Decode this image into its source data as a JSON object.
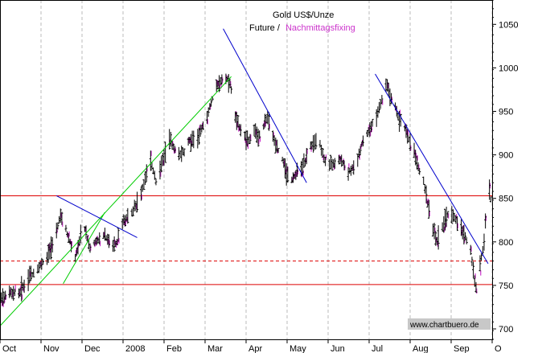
{
  "chart_data": {
    "type": "ohlc",
    "title_line1": "Gold US$/Unze",
    "title_line2_prefix": "Future /",
    "title_line2_highlight": "Nachmittagsfixing",
    "watermark": "www.chartbuero.de",
    "y_axis": {
      "ticks": [
        700,
        750,
        800,
        850,
        900,
        950,
        1000,
        1050
      ],
      "ylim": [
        688,
        1078
      ],
      "position": "right"
    },
    "x_axis": {
      "labels": [
        "Oct",
        "Nov",
        "Dec",
        "2008",
        "Feb",
        "Mar",
        "Apr",
        "May",
        "Jun",
        "Jul",
        "Aug",
        "Sep",
        "O"
      ],
      "range_days": [
        0,
        366
      ]
    },
    "horizontal_levels": [
      {
        "value": 853,
        "style": "solid",
        "color": "#dd0000"
      },
      {
        "value": 778,
        "style": "dashed",
        "color": "#dd0000"
      },
      {
        "value": 751,
        "style": "solid",
        "color": "#dd0000"
      }
    ],
    "trendlines": [
      {
        "color": "#00cc00",
        "from": [
          -2,
          700
        ],
        "to": [
          172,
          990
        ]
      },
      {
        "color": "#00cc00",
        "from": [
          47,
          752
        ],
        "to": [
          78,
          834
        ]
      },
      {
        "color": "#0000cc",
        "from": [
          42,
          853
        ],
        "to": [
          102,
          805
        ]
      },
      {
        "color": "#0000cc",
        "from": [
          166,
          1045
        ],
        "to": [
          228,
          868
        ]
      },
      {
        "color": "#0000cc",
        "from": [
          279,
          993
        ],
        "to": [
          363,
          775
        ]
      }
    ],
    "series_colors": {
      "future": "#000000",
      "fixing": "#cc33cc"
    },
    "grid": {
      "vertical": true,
      "style": "dashed",
      "color": "#bbbbbb"
    },
    "series": [
      {
        "name": "Future",
        "points": [
          [
            0,
            733
          ],
          [
            7,
            743
          ],
          [
            14,
            741
          ],
          [
            21,
            758
          ],
          [
            28,
            770
          ],
          [
            35,
            782
          ],
          [
            42,
            810
          ],
          [
            45,
            832
          ],
          [
            49,
            815
          ],
          [
            53,
            795
          ],
          [
            56,
            782
          ],
          [
            60,
            808
          ],
          [
            63,
            815
          ],
          [
            67,
            793
          ],
          [
            70,
            800
          ],
          [
            74,
            803
          ],
          [
            77,
            808
          ],
          [
            81,
            800
          ],
          [
            84,
            793
          ],
          [
            87,
            800
          ],
          [
            91,
            822
          ],
          [
            98,
            834
          ],
          [
            105,
            855
          ],
          [
            109,
            880
          ],
          [
            112,
            893
          ],
          [
            116,
            870
          ],
          [
            119,
            883
          ],
          [
            123,
            903
          ],
          [
            126,
            918
          ],
          [
            130,
            905
          ],
          [
            133,
            900
          ],
          [
            137,
            903
          ],
          [
            140,
            915
          ],
          [
            144,
            918
          ],
          [
            147,
            920
          ],
          [
            150,
            930
          ],
          [
            154,
            945
          ],
          [
            157,
            960
          ],
          [
            161,
            978
          ],
          [
            164,
            985
          ],
          [
            168,
            988
          ],
          [
            171,
            982
          ],
          [
            173,
            968
          ],
          [
            175,
            942
          ],
          [
            178,
            932
          ],
          [
            182,
            920
          ],
          [
            185,
            915
          ],
          [
            189,
            928
          ],
          [
            192,
            920
          ],
          [
            196,
            932
          ],
          [
            199,
            945
          ],
          [
            203,
            920
          ],
          [
            206,
            908
          ],
          [
            210,
            895
          ],
          [
            213,
            880
          ],
          [
            217,
            870
          ],
          [
            220,
            878
          ],
          [
            224,
            885
          ],
          [
            227,
            893
          ],
          [
            231,
            910
          ],
          [
            234,
            917
          ],
          [
            238,
            912
          ],
          [
            241,
            895
          ],
          [
            245,
            890
          ],
          [
            248,
            888
          ],
          [
            252,
            895
          ],
          [
            255,
            890
          ],
          [
            259,
            880
          ],
          [
            262,
            885
          ],
          [
            266,
            895
          ],
          [
            269,
            912
          ],
          [
            273,
            925
          ],
          [
            276,
            932
          ],
          [
            280,
            945
          ],
          [
            283,
            958
          ],
          [
            287,
            982
          ],
          [
            290,
            970
          ],
          [
            294,
            955
          ],
          [
            297,
            940
          ],
          [
            301,
            930
          ],
          [
            304,
            918
          ],
          [
            308,
            905
          ],
          [
            311,
            885
          ],
          [
            315,
            870
          ],
          [
            318,
            845
          ],
          [
            322,
            815
          ],
          [
            325,
            800
          ],
          [
            329,
            818
          ],
          [
            332,
            830
          ],
          [
            336,
            832
          ],
          [
            339,
            825
          ],
          [
            343,
            815
          ],
          [
            346,
            805
          ],
          [
            350,
            790
          ],
          [
            352,
            765
          ],
          [
            354,
            748
          ],
          [
            357,
            773
          ],
          [
            360,
            800
          ],
          [
            362,
            845
          ],
          [
            364,
            860
          ],
          [
            366,
            838
          ]
        ]
      }
    ]
  }
}
